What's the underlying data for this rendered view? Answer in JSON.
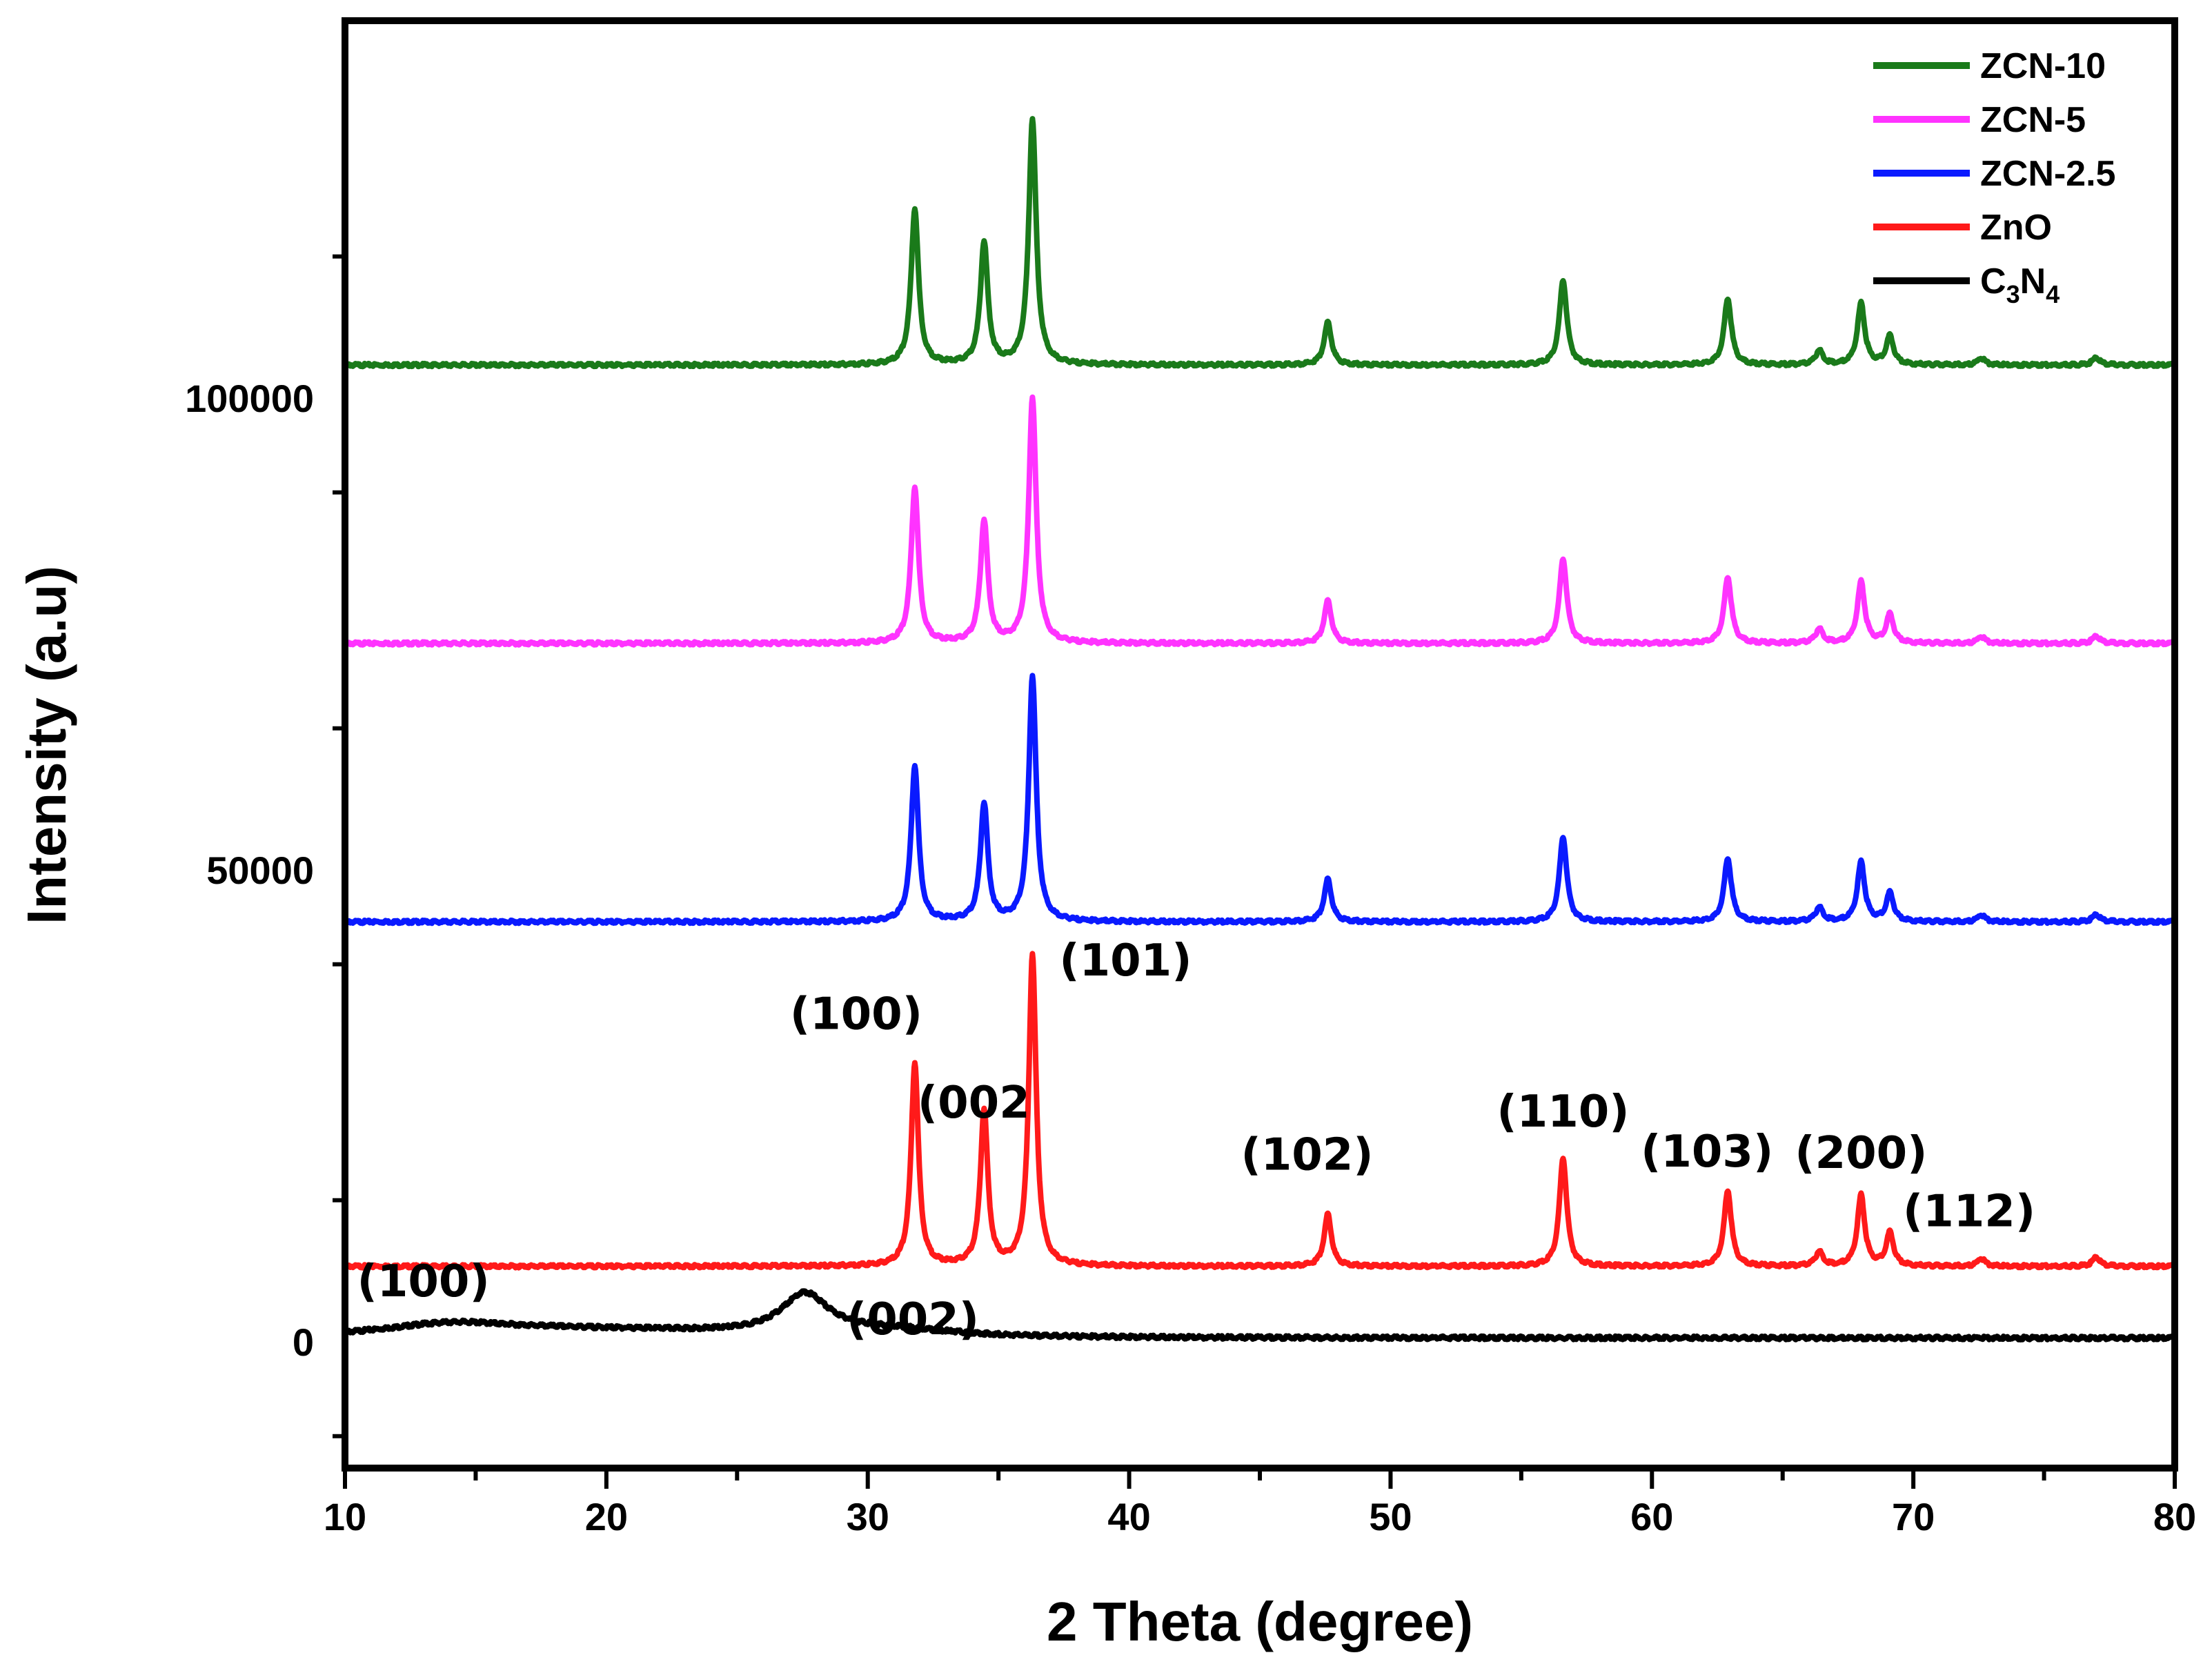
{
  "chart_data": {
    "type": "line",
    "title": "",
    "xlabel": "2 Theta (degree)",
    "ylabel": "Intensity (a.u)",
    "xlim": [
      10,
      80
    ],
    "ylim": [
      -10000,
      140000
    ],
    "xticks": [
      10,
      20,
      30,
      40,
      50,
      60,
      70,
      80
    ],
    "yticks": [
      0,
      50000,
      100000
    ],
    "xtick_labels": [
      "10",
      "20",
      "30",
      "40",
      "50",
      "60",
      "70",
      "80"
    ],
    "ytick_labels": [
      "0",
      "50000",
      "100000"
    ],
    "legend_position": "top-right",
    "series": [
      {
        "name": "ZCN-10",
        "color": "#1a7a1a",
        "baseline": 103500,
        "peaks": [
          [
            31.8,
            16500
          ],
          [
            34.45,
            13000
          ],
          [
            36.3,
            26000
          ],
          [
            47.6,
            4500
          ],
          [
            56.6,
            9000
          ],
          [
            62.9,
            7000
          ],
          [
            66.4,
            1500
          ],
          [
            68.0,
            6500
          ],
          [
            69.1,
            3000
          ],
          [
            72.6,
            700
          ],
          [
            77.0,
            800
          ]
        ]
      },
      {
        "name": "ZCN-5",
        "color": "#ff33ff",
        "baseline": 74000,
        "peaks": [
          [
            31.8,
            16500
          ],
          [
            34.45,
            13000
          ],
          [
            36.3,
            26000
          ],
          [
            47.6,
            4500
          ],
          [
            56.6,
            9000
          ],
          [
            62.9,
            7000
          ],
          [
            66.4,
            1500
          ],
          [
            68.0,
            6500
          ],
          [
            69.1,
            3000
          ],
          [
            72.6,
            700
          ],
          [
            77.0,
            800
          ]
        ]
      },
      {
        "name": "ZCN-2.5",
        "color": "#0a1aff",
        "baseline": 44500,
        "peaks": [
          [
            31.8,
            16500
          ],
          [
            34.45,
            12500
          ],
          [
            36.3,
            26000
          ],
          [
            47.6,
            4500
          ],
          [
            56.6,
            9000
          ],
          [
            62.9,
            6700
          ],
          [
            66.4,
            1500
          ],
          [
            68.0,
            6300
          ],
          [
            69.1,
            3000
          ],
          [
            72.6,
            700
          ],
          [
            77.0,
            800
          ]
        ]
      },
      {
        "name": "ZnO",
        "color": "#ff1a1a",
        "baseline": 8000,
        "peaks": [
          [
            31.8,
            21500
          ],
          [
            34.45,
            16500
          ],
          [
            36.3,
            33000
          ],
          [
            47.6,
            5500
          ],
          [
            56.6,
            11500
          ],
          [
            62.9,
            8000
          ],
          [
            66.4,
            1500
          ],
          [
            68.0,
            7500
          ],
          [
            69.1,
            3500
          ],
          [
            72.6,
            800
          ],
          [
            77.0,
            1000
          ]
        ]
      },
      {
        "name": "C3N4",
        "color": "#000000",
        "baseline": 400,
        "shape": "broad"
      }
    ],
    "annotations": [
      {
        "text": "(100)",
        "x": 31.8,
        "series": "ZnO"
      },
      {
        "text": "(002",
        "x": 34.45,
        "series": "ZnO"
      },
      {
        "text": "(101)",
        "x": 36.3,
        "series": "ZnO"
      },
      {
        "text": "(102)",
        "x": 47.6,
        "series": "ZnO"
      },
      {
        "text": "(110)",
        "x": 56.6,
        "series": "ZnO"
      },
      {
        "text": "(103)",
        "x": 62.9,
        "series": "ZnO"
      },
      {
        "text": "(200)",
        "x": 68.0,
        "series": "ZnO"
      },
      {
        "text": "(112)",
        "x": 69.1,
        "series": "ZnO"
      },
      {
        "text": "(100)",
        "x": 13.0,
        "series": "C3N4"
      },
      {
        "text": "(002)",
        "x": 27.5,
        "series": "C3N4"
      }
    ],
    "legend": [
      {
        "label": "ZCN-10",
        "color": "#1a7a1a"
      },
      {
        "label": "ZCN-5",
        "color": "#ff33ff"
      },
      {
        "label": "ZCN-2.5",
        "color": "#0a1aff"
      },
      {
        "label": "ZnO",
        "color": "#ff1a1a"
      },
      {
        "label": "C",
        "sub1": "3",
        "mid": "N",
        "sub2": "4",
        "color": "#000000"
      }
    ]
  }
}
